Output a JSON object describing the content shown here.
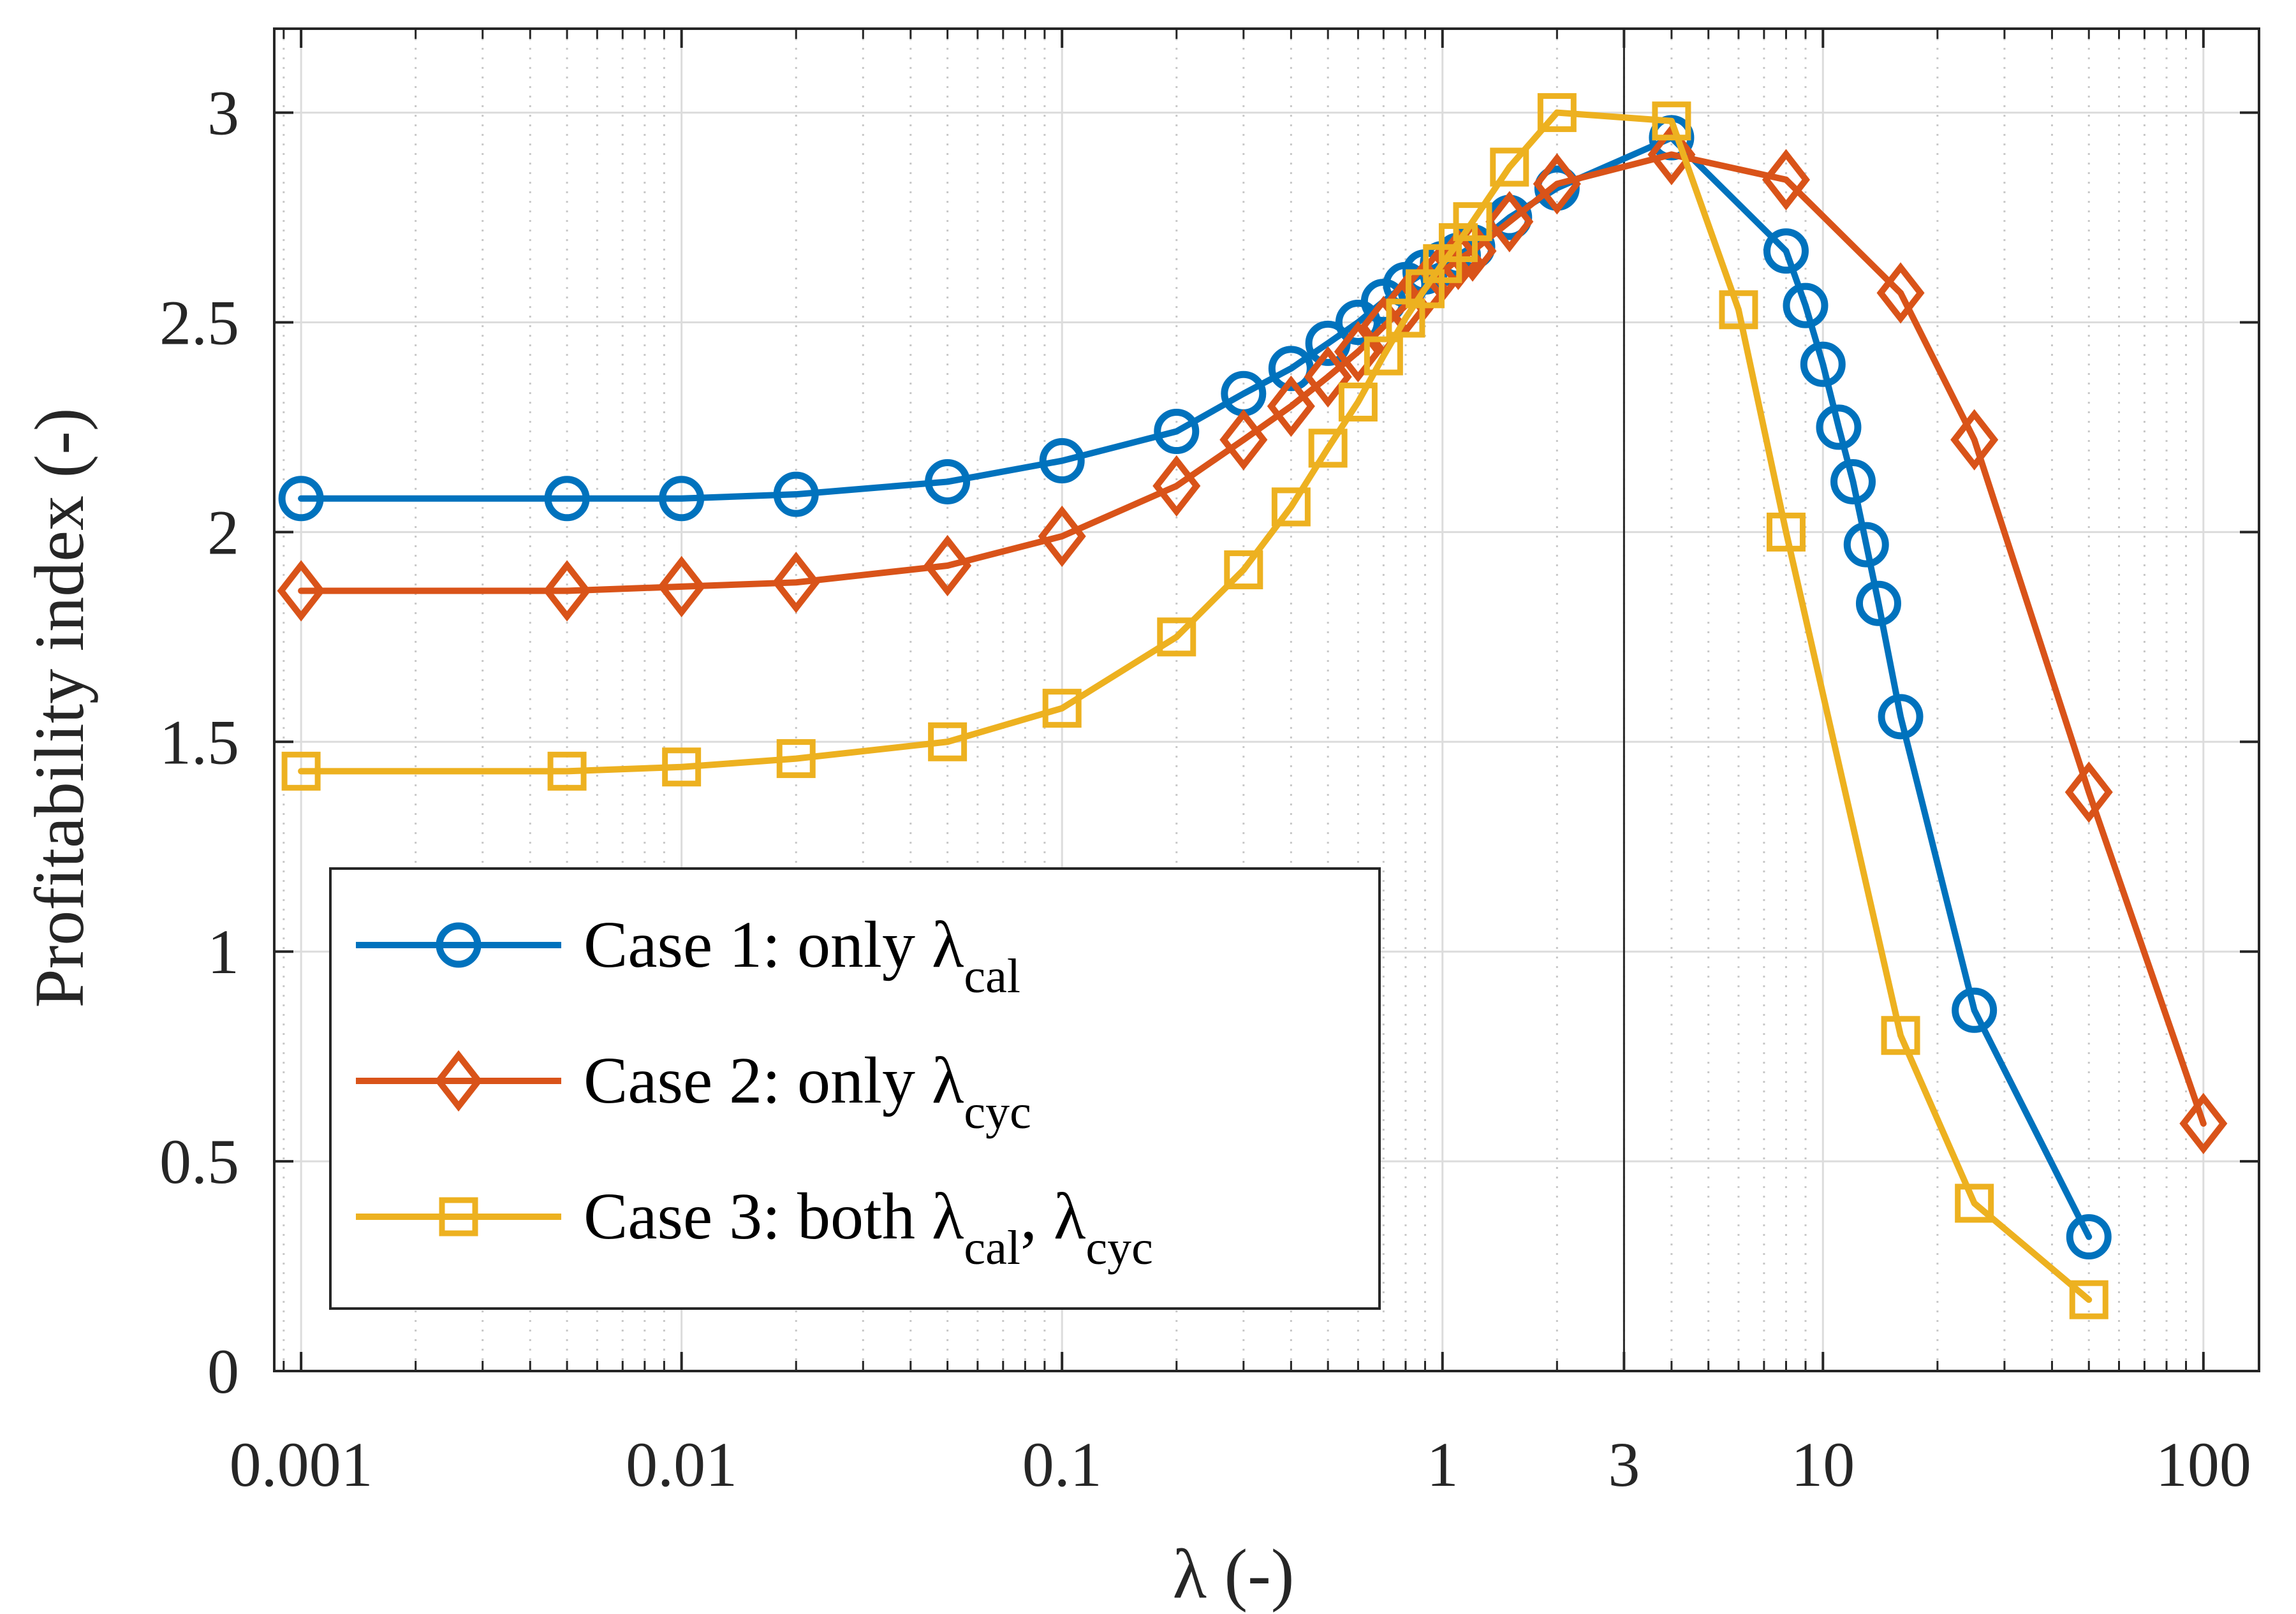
{
  "chart_data": {
    "type": "line",
    "xlabel": "λ (-)",
    "ylabel": "Profitability index (-)",
    "xscale": "log",
    "xlim": [
      0.00085,
      140
    ],
    "ylim": [
      0,
      3.2
    ],
    "grid": true,
    "x_tick_values": [
      0.001,
      0.01,
      0.1,
      1,
      3,
      10,
      100
    ],
    "x_tick_labels": [
      "0.001",
      "0.01",
      "0.1",
      "1",
      "3",
      "10",
      "100"
    ],
    "y_tick_values": [
      0,
      0.5,
      1,
      1.5,
      2,
      2.5,
      3
    ],
    "y_tick_labels": [
      "0",
      "0.5",
      "1",
      "1.5",
      "2",
      "2.5",
      "3"
    ],
    "reference_line_x": 3,
    "legend_position": "lower-left",
    "series": [
      {
        "name": "Case 1: only λcal",
        "legend": {
          "main": "Case 1: only λ",
          "sub": "cal"
        },
        "color": "#0072BD",
        "marker": "circle",
        "x": [
          0.001,
          0.005,
          0.01,
          0.02,
          0.05,
          0.1,
          0.2,
          0.3,
          0.4,
          0.5,
          0.6,
          0.7,
          0.8,
          0.9,
          1.0,
          1.1,
          1.2,
          1.5,
          2,
          4,
          8,
          9,
          10,
          11,
          12,
          13,
          14,
          16,
          25,
          50
        ],
        "y": [
          2.08,
          2.08,
          2.08,
          2.09,
          2.12,
          2.17,
          2.24,
          2.33,
          2.39,
          2.45,
          2.5,
          2.55,
          2.59,
          2.62,
          2.64,
          2.66,
          2.68,
          2.75,
          2.82,
          2.94,
          2.67,
          2.54,
          2.4,
          2.25,
          2.12,
          1.97,
          1.83,
          1.56,
          0.86,
          0.32
        ]
      },
      {
        "name": "Case 2: only λcyc",
        "legend": {
          "main": "Case 2: only λ",
          "sub": "cyc"
        },
        "color": "#D95319",
        "marker": "diamond",
        "x": [
          0.001,
          0.005,
          0.01,
          0.02,
          0.05,
          0.1,
          0.2,
          0.3,
          0.4,
          0.5,
          0.6,
          0.7,
          0.8,
          0.9,
          1.0,
          1.1,
          1.2,
          1.5,
          2,
          4,
          8,
          16,
          25,
          50,
          100
        ],
        "y": [
          1.86,
          1.86,
          1.87,
          1.88,
          1.92,
          1.99,
          2.11,
          2.22,
          2.3,
          2.37,
          2.43,
          2.49,
          2.54,
          2.58,
          2.62,
          2.65,
          2.67,
          2.74,
          2.83,
          2.9,
          2.84,
          2.57,
          2.22,
          1.38,
          0.59
        ]
      },
      {
        "name": "Case 3: both λcal, λcyc",
        "legend": {
          "main": "Case 3: both λ",
          "sub": "cal",
          "mid": ", λ",
          "sub2": "cyc"
        },
        "color": "#EDB120",
        "marker": "square",
        "x": [
          0.001,
          0.005,
          0.01,
          0.02,
          0.05,
          0.1,
          0.2,
          0.3,
          0.4,
          0.5,
          0.6,
          0.7,
          0.8,
          0.9,
          1.0,
          1.1,
          1.2,
          1.5,
          2,
          4,
          6,
          8,
          16,
          25,
          50
        ],
        "y": [
          1.43,
          1.43,
          1.44,
          1.46,
          1.5,
          1.58,
          1.75,
          1.91,
          2.06,
          2.2,
          2.31,
          2.42,
          2.51,
          2.58,
          2.64,
          2.69,
          2.74,
          2.87,
          3.0,
          2.98,
          2.53,
          2.0,
          0.8,
          0.4,
          0.17
        ]
      }
    ]
  }
}
